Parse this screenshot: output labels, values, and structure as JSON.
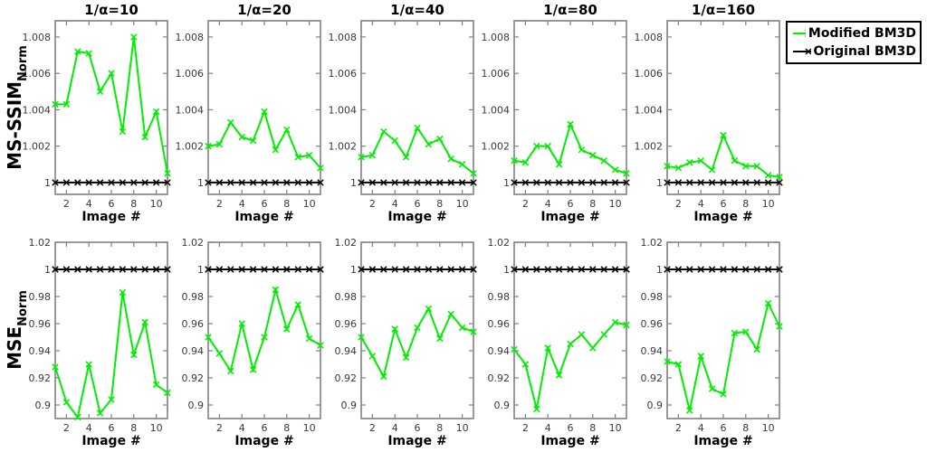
{
  "figure": {
    "row_labels": [
      {
        "main": "MS-SSIM",
        "sub": "Norm"
      },
      {
        "main": "MSE",
        "sub": "Norm"
      }
    ],
    "xlabel": "Image #",
    "legend": {
      "entries": [
        {
          "label": "Modified BM3D",
          "color": "#00ee00",
          "marker": "x"
        },
        {
          "label": "Original BM3D",
          "color": "#000000",
          "marker": "x"
        }
      ]
    },
    "colors": {
      "axis_box": "#808080",
      "tick_text": "#3a3a3a",
      "modified": "#00ee00",
      "original": "#000000"
    }
  },
  "chart_data": [
    {
      "id": "ms-ssim-alpha-10",
      "type": "line",
      "metric": "MS-SSIM_Norm",
      "title": "1/α=10",
      "row": 0,
      "col": 0,
      "xlabel": "Image #",
      "x": [
        1,
        2,
        3,
        4,
        5,
        6,
        7,
        8,
        9,
        10,
        11
      ],
      "xlim": [
        1,
        11
      ],
      "xticks": [
        2,
        4,
        6,
        8,
        10
      ],
      "ylim": [
        0.99935,
        1.00889
      ],
      "yticks": [
        1,
        1.002,
        1.004,
        1.006,
        1.008
      ],
      "ytick_labels": [
        "1",
        "1.002",
        "1.004",
        "1.006",
        "1.008"
      ],
      "series": [
        {
          "name": "Modified BM3D",
          "color": "#00ee00",
          "values": [
            1.0043,
            1.0043,
            1.0072,
            1.0071,
            1.005,
            1.006,
            1.0028,
            1.008,
            1.0025,
            1.0039,
            1.0005
          ]
        },
        {
          "name": "Original BM3D",
          "color": "#000000",
          "values": [
            1,
            1,
            1,
            1,
            1,
            1,
            1,
            1,
            1,
            1,
            1
          ]
        }
      ]
    },
    {
      "id": "ms-ssim-alpha-20",
      "type": "line",
      "metric": "MS-SSIM_Norm",
      "title": "1/α=20",
      "row": 0,
      "col": 1,
      "xlabel": "Image #",
      "x": [
        1,
        2,
        3,
        4,
        5,
        6,
        7,
        8,
        9,
        10,
        11
      ],
      "xlim": [
        1,
        11
      ],
      "xticks": [
        2,
        4,
        6,
        8,
        10
      ],
      "ylim": [
        0.99935,
        1.00889
      ],
      "yticks": [
        1,
        1.002,
        1.004,
        1.006,
        1.008
      ],
      "ytick_labels": [
        "1",
        "1.002",
        "1.004",
        "1.006",
        "1.008"
      ],
      "series": [
        {
          "name": "Modified BM3D",
          "color": "#00ee00",
          "values": [
            1.002,
            1.0021,
            1.0033,
            1.0025,
            1.0023,
            1.0039,
            1.0018,
            1.0029,
            1.0014,
            1.0015,
            1.0008
          ]
        },
        {
          "name": "Original BM3D",
          "color": "#000000",
          "values": [
            1,
            1,
            1,
            1,
            1,
            1,
            1,
            1,
            1,
            1,
            1
          ]
        }
      ]
    },
    {
      "id": "ms-ssim-alpha-40",
      "type": "line",
      "metric": "MS-SSIM_Norm",
      "title": "1/α=40",
      "row": 0,
      "col": 2,
      "xlabel": "Image #",
      "x": [
        1,
        2,
        3,
        4,
        5,
        6,
        7,
        8,
        9,
        10,
        11
      ],
      "xlim": [
        1,
        11
      ],
      "xticks": [
        2,
        4,
        6,
        8,
        10
      ],
      "ylim": [
        0.99935,
        1.00889
      ],
      "yticks": [
        1,
        1.002,
        1.004,
        1.006,
        1.008
      ],
      "ytick_labels": [
        "1",
        "1.002",
        "1.004",
        "1.006",
        "1.008"
      ],
      "series": [
        {
          "name": "Modified BM3D",
          "color": "#00ee00",
          "values": [
            1.0014,
            1.0015,
            1.0028,
            1.0023,
            1.0014,
            1.003,
            1.0021,
            1.0024,
            1.0013,
            1.001,
            1.0005
          ]
        },
        {
          "name": "Original BM3D",
          "color": "#000000",
          "values": [
            1,
            1,
            1,
            1,
            1,
            1,
            1,
            1,
            1,
            1,
            1
          ]
        }
      ]
    },
    {
      "id": "ms-ssim-alpha-80",
      "type": "line",
      "metric": "MS-SSIM_Norm",
      "title": "1/α=80",
      "row": 0,
      "col": 3,
      "xlabel": "Image #",
      "x": [
        1,
        2,
        3,
        4,
        5,
        6,
        7,
        8,
        9,
        10,
        11
      ],
      "xlim": [
        1,
        11
      ],
      "xticks": [
        2,
        4,
        6,
        8,
        10
      ],
      "ylim": [
        0.99935,
        1.00889
      ],
      "yticks": [
        1,
        1.002,
        1.004,
        1.006,
        1.008
      ],
      "ytick_labels": [
        "1",
        "1.002",
        "1.004",
        "1.006",
        "1.008"
      ],
      "series": [
        {
          "name": "Modified BM3D",
          "color": "#00ee00",
          "values": [
            1.0012,
            1.0011,
            1.002,
            1.002,
            1.001,
            1.0032,
            1.0018,
            1.0015,
            1.0012,
            1.0007,
            1.0005
          ]
        },
        {
          "name": "Original BM3D",
          "color": "#000000",
          "values": [
            1,
            1,
            1,
            1,
            1,
            1,
            1,
            1,
            1,
            1,
            1
          ]
        }
      ]
    },
    {
      "id": "ms-ssim-alpha-160",
      "type": "line",
      "metric": "MS-SSIM_Norm",
      "title": "1/α=160",
      "row": 0,
      "col": 4,
      "xlabel": "Image #",
      "x": [
        1,
        2,
        3,
        4,
        5,
        6,
        7,
        8,
        9,
        10,
        11
      ],
      "xlim": [
        1,
        11
      ],
      "xticks": [
        2,
        4,
        6,
        8,
        10
      ],
      "ylim": [
        0.99935,
        1.00889
      ],
      "yticks": [
        1,
        1.002,
        1.004,
        1.006,
        1.008
      ],
      "ytick_labels": [
        "1",
        "1.002",
        "1.004",
        "1.006",
        "1.008"
      ],
      "series": [
        {
          "name": "Modified BM3D",
          "color": "#00ee00",
          "values": [
            1.0009,
            1.0008,
            1.0011,
            1.0012,
            1.0007,
            1.0026,
            1.0012,
            1.0009,
            1.0009,
            1.0004,
            1.0003
          ]
        },
        {
          "name": "Original BM3D",
          "color": "#000000",
          "values": [
            1,
            1,
            1,
            1,
            1,
            1,
            1,
            1,
            1,
            1,
            1
          ]
        }
      ]
    },
    {
      "id": "mse-alpha-10",
      "type": "line",
      "metric": "MSE_Norm",
      "title": "",
      "row": 1,
      "col": 0,
      "xlabel": "Image #",
      "x": [
        1,
        2,
        3,
        4,
        5,
        6,
        7,
        8,
        9,
        10,
        11
      ],
      "xlim": [
        1,
        11
      ],
      "xticks": [
        2,
        4,
        6,
        8,
        10
      ],
      "ylim": [
        0.89,
        1.02
      ],
      "yticks": [
        0.9,
        0.92,
        0.94,
        0.96,
        0.98,
        1,
        1.02
      ],
      "ytick_labels": [
        "0.9",
        "0.92",
        "0.94",
        "0.96",
        "0.98",
        "1",
        "1.02"
      ],
      "series": [
        {
          "name": "Modified BM3D",
          "color": "#00ee00",
          "values": [
            0.928,
            0.902,
            0.891,
            0.93,
            0.894,
            0.904,
            0.983,
            0.937,
            0.961,
            0.915,
            0.909
          ]
        },
        {
          "name": "Original BM3D",
          "color": "#000000",
          "values": [
            1,
            1,
            1,
            1,
            1,
            1,
            1,
            1,
            1,
            1,
            1
          ]
        }
      ]
    },
    {
      "id": "mse-alpha-20",
      "type": "line",
      "metric": "MSE_Norm",
      "title": "",
      "row": 1,
      "col": 1,
      "xlabel": "Image #",
      "x": [
        1,
        2,
        3,
        4,
        5,
        6,
        7,
        8,
        9,
        10,
        11
      ],
      "xlim": [
        1,
        11
      ],
      "xticks": [
        2,
        4,
        6,
        8,
        10
      ],
      "ylim": [
        0.89,
        1.02
      ],
      "yticks": [
        0.9,
        0.92,
        0.94,
        0.96,
        0.98,
        1,
        1.02
      ],
      "ytick_labels": [
        "0.9",
        "0.92",
        "0.94",
        "0.96",
        "0.98",
        "1",
        "1.02"
      ],
      "series": [
        {
          "name": "Modified BM3D",
          "color": "#00ee00",
          "values": [
            0.95,
            0.938,
            0.925,
            0.96,
            0.926,
            0.95,
            0.985,
            0.956,
            0.974,
            0.949,
            0.944
          ]
        },
        {
          "name": "Original BM3D",
          "color": "#000000",
          "values": [
            1,
            1,
            1,
            1,
            1,
            1,
            1,
            1,
            1,
            1,
            1
          ]
        }
      ]
    },
    {
      "id": "mse-alpha-40",
      "type": "line",
      "metric": "MSE_Norm",
      "title": "",
      "row": 1,
      "col": 2,
      "xlabel": "Image #",
      "x": [
        1,
        2,
        3,
        4,
        5,
        6,
        7,
        8,
        9,
        10,
        11
      ],
      "xlim": [
        1,
        11
      ],
      "xticks": [
        2,
        4,
        6,
        8,
        10
      ],
      "ylim": [
        0.89,
        1.02
      ],
      "yticks": [
        0.9,
        0.92,
        0.94,
        0.96,
        0.98,
        1,
        1.02
      ],
      "ytick_labels": [
        "0.9",
        "0.92",
        "0.94",
        "0.96",
        "0.98",
        "1",
        "1.02"
      ],
      "series": [
        {
          "name": "Modified BM3D",
          "color": "#00ee00",
          "values": [
            0.95,
            0.936,
            0.921,
            0.956,
            0.935,
            0.957,
            0.971,
            0.949,
            0.967,
            0.957,
            0.954
          ]
        },
        {
          "name": "Original BM3D",
          "color": "#000000",
          "values": [
            1,
            1,
            1,
            1,
            1,
            1,
            1,
            1,
            1,
            1,
            1
          ]
        }
      ]
    },
    {
      "id": "mse-alpha-80",
      "type": "line",
      "metric": "MSE_Norm",
      "title": "",
      "row": 1,
      "col": 3,
      "xlabel": "Image #",
      "x": [
        1,
        2,
        3,
        4,
        5,
        6,
        7,
        8,
        9,
        10,
        11
      ],
      "xlim": [
        1,
        11
      ],
      "xticks": [
        2,
        4,
        6,
        8,
        10
      ],
      "ylim": [
        0.89,
        1.02
      ],
      "yticks": [
        0.9,
        0.92,
        0.94,
        0.96,
        0.98,
        1,
        1.02
      ],
      "ytick_labels": [
        "0.9",
        "0.92",
        "0.94",
        "0.96",
        "0.98",
        "1",
        "1.02"
      ],
      "series": [
        {
          "name": "Modified BM3D",
          "color": "#00ee00",
          "values": [
            0.941,
            0.93,
            0.897,
            0.942,
            0.922,
            0.945,
            0.952,
            0.942,
            0.952,
            0.961,
            0.959
          ]
        },
        {
          "name": "Original BM3D",
          "color": "#000000",
          "values": [
            1,
            1,
            1,
            1,
            1,
            1,
            1,
            1,
            1,
            1,
            1
          ]
        }
      ]
    },
    {
      "id": "mse-alpha-160",
      "type": "line",
      "metric": "MSE_Norm",
      "title": "",
      "row": 1,
      "col": 4,
      "xlabel": "Image #",
      "x": [
        1,
        2,
        3,
        4,
        5,
        6,
        7,
        8,
        9,
        10,
        11
      ],
      "xlim": [
        1,
        11
      ],
      "xticks": [
        2,
        4,
        6,
        8,
        10
      ],
      "ylim": [
        0.89,
        1.02
      ],
      "yticks": [
        0.9,
        0.92,
        0.94,
        0.96,
        0.98,
        1,
        1.02
      ],
      "ytick_labels": [
        "0.9",
        "0.92",
        "0.94",
        "0.96",
        "0.98",
        "1",
        "1.02"
      ],
      "series": [
        {
          "name": "Modified BM3D",
          "color": "#00ee00",
          "values": [
            0.932,
            0.93,
            0.896,
            0.936,
            0.912,
            0.908,
            0.953,
            0.954,
            0.941,
            0.975,
            0.958
          ]
        },
        {
          "name": "Original BM3D",
          "color": "#000000",
          "values": [
            1,
            1,
            1,
            1,
            1,
            1,
            1,
            1,
            1,
            1,
            1
          ]
        }
      ]
    }
  ]
}
